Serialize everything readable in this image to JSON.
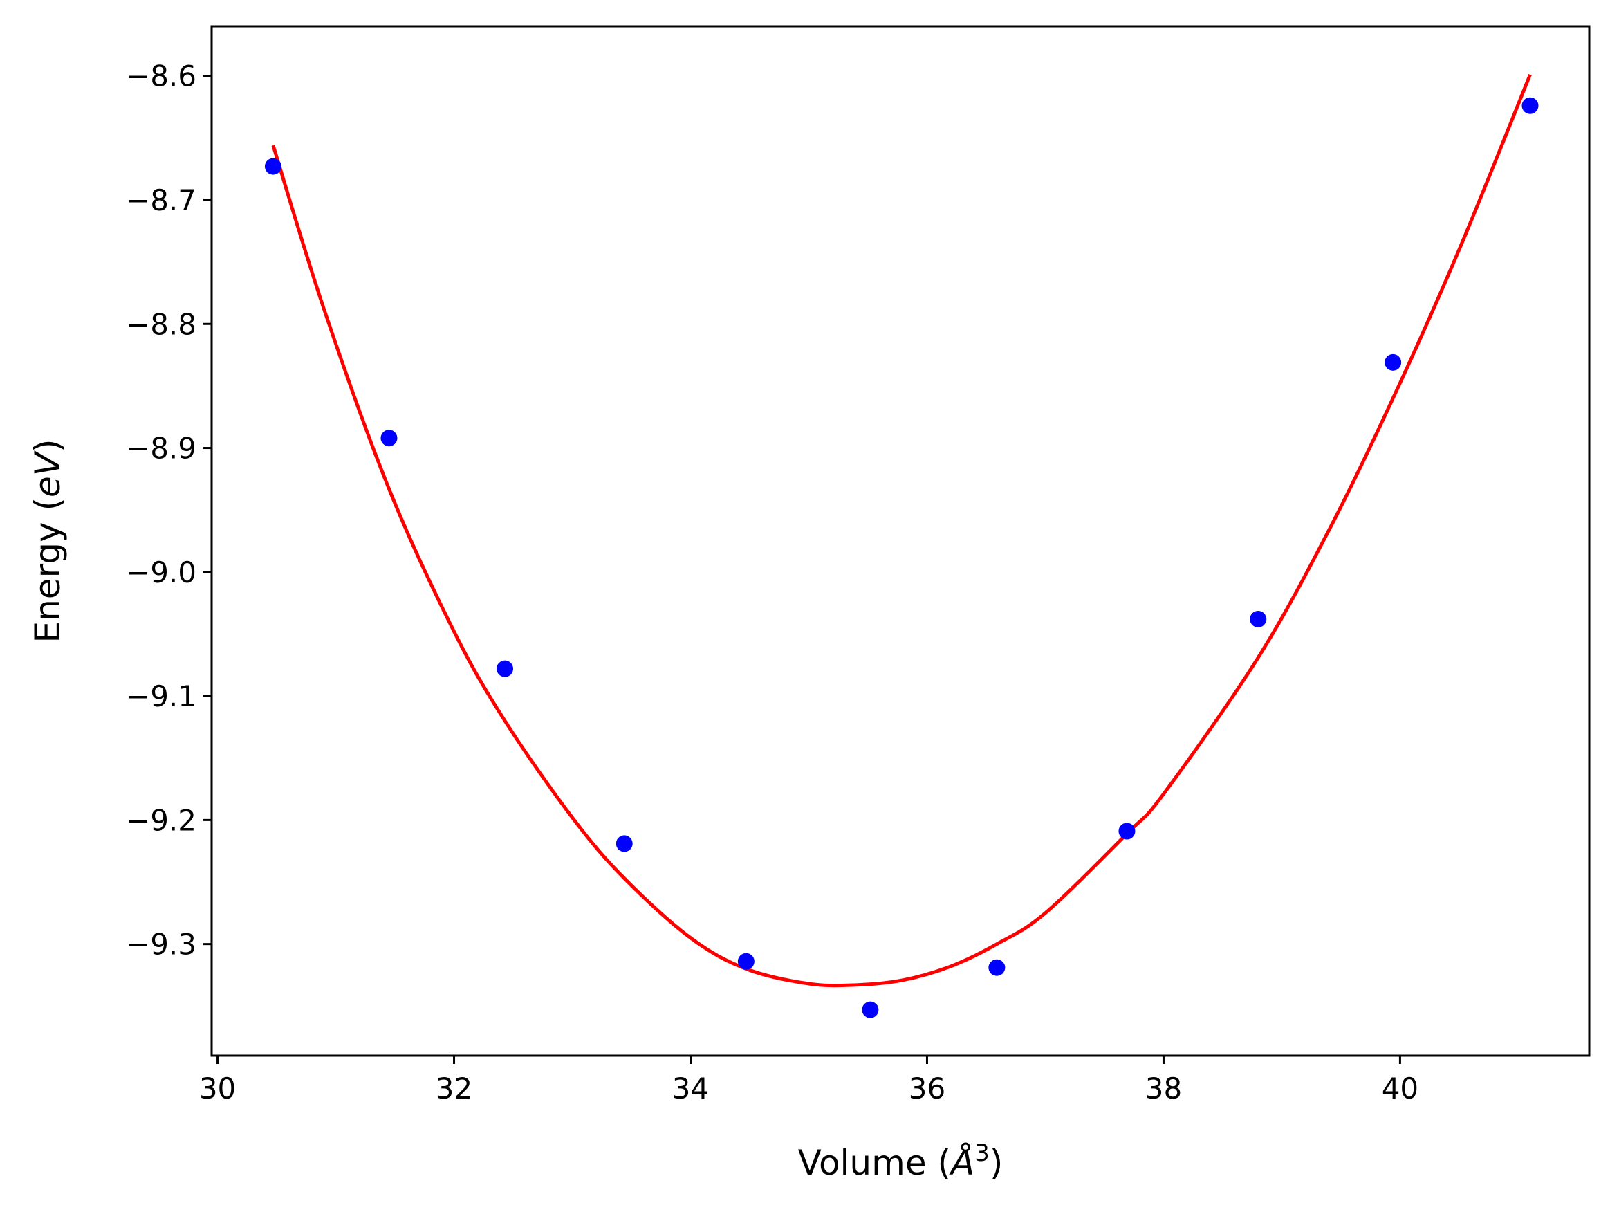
{
  "chart_data": {
    "type": "scatter",
    "title": "",
    "xlabel": {
      "main": "Volume (",
      "unit_symbol": "Å",
      "exponent": "3",
      "close": ")"
    },
    "ylabel": {
      "main": "Energy (",
      "unit": "eV",
      "close": ")"
    },
    "xlim": [
      29.95,
      41.6
    ],
    "ylim": [
      -9.39,
      -8.56
    ],
    "xticks": [
      30,
      32,
      34,
      36,
      38,
      40
    ],
    "xtick_labels": [
      "30",
      "32",
      "34",
      "36",
      "38",
      "40"
    ],
    "yticks": [
      -8.6,
      -8.7,
      -8.8,
      -8.9,
      -9.0,
      -9.1,
      -9.2,
      -9.3
    ],
    "ytick_labels": [
      "−8.6",
      "−8.7",
      "−8.8",
      "−8.9",
      "−9.0",
      "−9.1",
      "−9.2",
      "−9.3"
    ],
    "grid": false,
    "series": [
      {
        "kind": "points",
        "color": "#0000ff",
        "x": [
          30.47,
          31.45,
          32.43,
          33.44,
          34.47,
          35.52,
          36.59,
          37.69,
          38.8,
          39.94,
          41.1
        ],
        "y": [
          -8.673,
          -8.892,
          -9.078,
          -9.219,
          -9.314,
          -9.353,
          -9.319,
          -9.209,
          -9.038,
          -8.831,
          -8.624
        ]
      },
      {
        "kind": "fit-curve",
        "color": "#ff0000",
        "x": [
          30.47,
          30.9,
          31.45,
          32.0,
          32.43,
          33.0,
          33.44,
          34.0,
          34.47,
          35.0,
          35.4,
          35.8,
          36.2,
          36.59,
          37.0,
          37.69,
          38.0,
          38.8,
          39.4,
          39.94,
          40.5,
          41.1
        ],
        "y": [
          -8.656,
          -8.788,
          -8.933,
          -9.048,
          -9.12,
          -9.198,
          -9.247,
          -9.295,
          -9.32,
          -9.332,
          -9.333,
          -9.329,
          -9.318,
          -9.3,
          -9.275,
          -9.211,
          -9.179,
          -9.069,
          -8.966,
          -8.86,
          -8.74,
          -8.599
        ]
      }
    ]
  }
}
